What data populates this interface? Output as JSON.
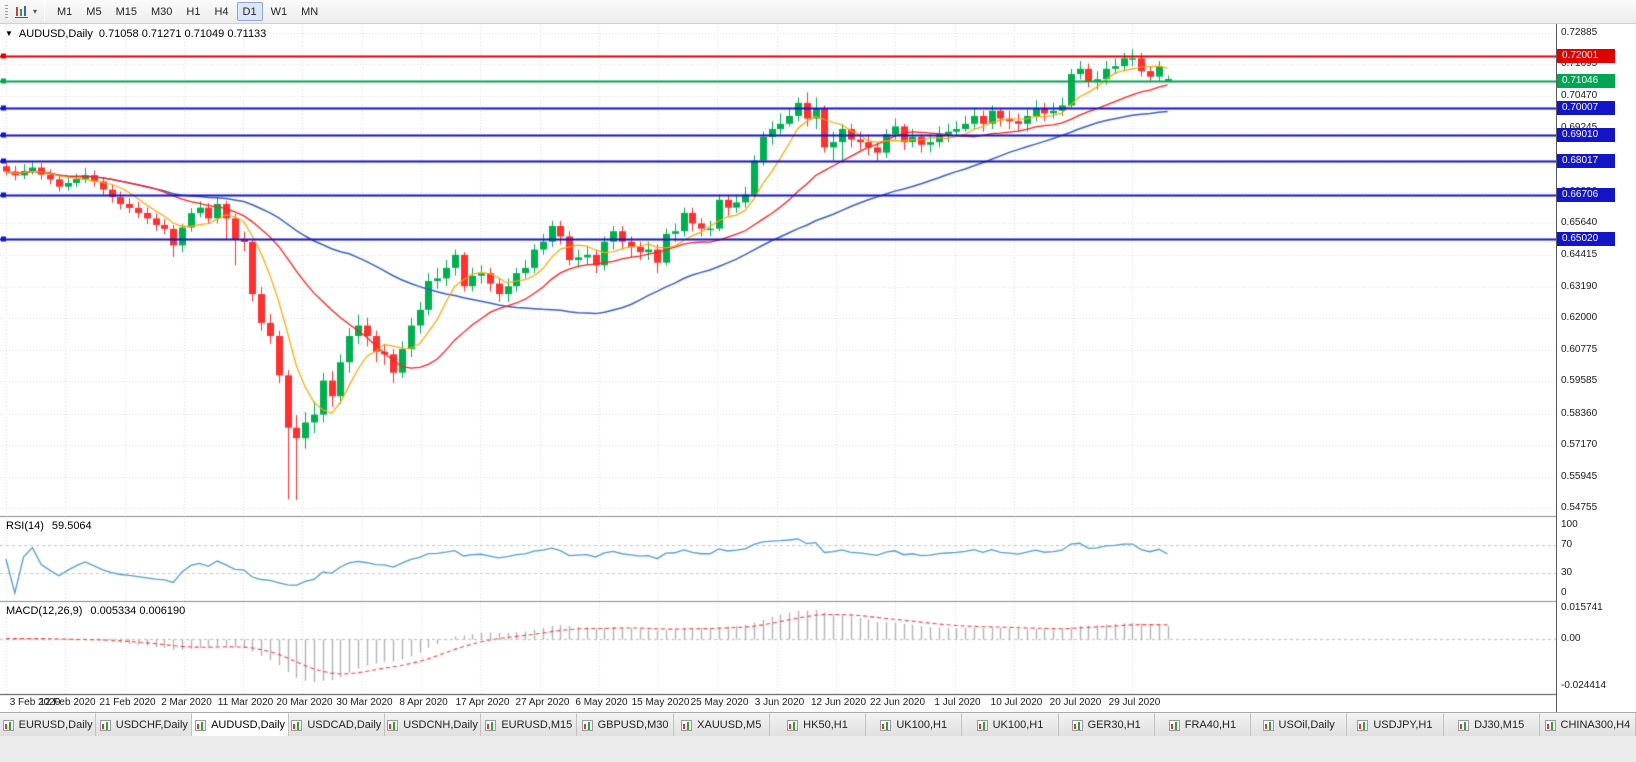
{
  "toolbar": {
    "timeframes": [
      "M1",
      "M5",
      "M15",
      "M30",
      "H1",
      "H4",
      "D1",
      "W1",
      "MN"
    ],
    "active_timeframe": "D1",
    "overflow_caret": "▾"
  },
  "chart": {
    "symbol_period": "AUDUSD,Daily",
    "ohlc": "0.71058 0.71271 0.71049 0.71133",
    "dropdown_glyph": "▼"
  },
  "chart_data": {
    "type": "candlestick",
    "symbol": "AUDUSD",
    "period": "Daily",
    "y_range": [
      0.5445,
      0.7323
    ],
    "y_ticks": [
      "0.72885",
      "0.71695",
      "0.70470",
      "0.69245",
      "0.68055",
      "0.66830",
      "0.65640",
      "0.64415",
      "0.63190",
      "0.62000",
      "0.60775",
      "0.59585",
      "0.58360",
      "0.57170",
      "0.55945",
      "0.54755"
    ],
    "x_labels": [
      "3 Feb 2020",
      "12 Feb 2020",
      "21 Feb 2020",
      "2 Mar 2020",
      "11 Mar 2020",
      "20 Mar 2020",
      "30 Mar 2020",
      "8 Apr 2020",
      "17 Apr 2020",
      "27 Apr 2020",
      "6 May 2020",
      "15 May 2020",
      "25 May 2020",
      "3 Jun 2020",
      "12 Jun 2020",
      "22 Jun 2020",
      "1 Jul 2020",
      "10 Jul 2020",
      "20 Jul 2020",
      "29 Jul 2020"
    ],
    "price_lines": [
      {
        "label": "0.72001",
        "value": 0.72001,
        "color": "#e00000"
      },
      {
        "label": "0.71046",
        "value": 0.71046,
        "color": "#00a651"
      },
      {
        "label": "0.70007",
        "value": 0.70007,
        "color": "#1414c8"
      },
      {
        "label": "0.69010",
        "value": 0.6901,
        "color": "#1414c8"
      },
      {
        "label": "0.68017",
        "value": 0.68017,
        "color": "#1414c8"
      },
      {
        "label": "0.66706",
        "value": 0.66706,
        "color": "#1414c8"
      },
      {
        "label": "0.65020",
        "value": 0.6502,
        "color": "#1414c8"
      }
    ],
    "candles": [
      [
        0.678,
        0.6795,
        0.6745,
        0.676
      ],
      [
        0.676,
        0.6782,
        0.6726,
        0.6745
      ],
      [
        0.6745,
        0.6788,
        0.6731,
        0.6762
      ],
      [
        0.6762,
        0.6799,
        0.6748,
        0.6775
      ],
      [
        0.6775,
        0.6792,
        0.6729,
        0.6748
      ],
      [
        0.6748,
        0.6768,
        0.6711,
        0.673
      ],
      [
        0.673,
        0.6748,
        0.6684,
        0.6702
      ],
      [
        0.6702,
        0.674,
        0.6687,
        0.6716
      ],
      [
        0.6716,
        0.6752,
        0.67,
        0.6731
      ],
      [
        0.6731,
        0.6774,
        0.6716,
        0.6746
      ],
      [
        0.6746,
        0.6764,
        0.6703,
        0.6722
      ],
      [
        0.6722,
        0.6738,
        0.6672,
        0.6691
      ],
      [
        0.6691,
        0.6712,
        0.6641,
        0.6662
      ],
      [
        0.6662,
        0.6684,
        0.6615,
        0.6636
      ],
      [
        0.6636,
        0.6658,
        0.6601,
        0.6621
      ],
      [
        0.6621,
        0.6644,
        0.6582,
        0.6602
      ],
      [
        0.6602,
        0.6623,
        0.6559,
        0.6581
      ],
      [
        0.6581,
        0.66,
        0.6534,
        0.6556
      ],
      [
        0.6556,
        0.6578,
        0.6521,
        0.6541
      ],
      [
        0.6541,
        0.6556,
        0.6434,
        0.6478
      ],
      [
        0.6478,
        0.656,
        0.6452,
        0.6546
      ],
      [
        0.6546,
        0.662,
        0.653,
        0.6601
      ],
      [
        0.6601,
        0.6646,
        0.6585,
        0.6622
      ],
      [
        0.6622,
        0.664,
        0.656,
        0.6581
      ],
      [
        0.6581,
        0.666,
        0.6562,
        0.6636
      ],
      [
        0.6636,
        0.6648,
        0.6498,
        0.6581
      ],
      [
        0.6581,
        0.6598,
        0.6402,
        0.6502
      ],
      [
        0.6502,
        0.653,
        0.6455,
        0.6491
      ],
      [
        0.6491,
        0.6502,
        0.6264,
        0.6292
      ],
      [
        0.6292,
        0.632,
        0.6152,
        0.6182
      ],
      [
        0.6182,
        0.6216,
        0.6102,
        0.6132
      ],
      [
        0.6132,
        0.6152,
        0.5952,
        0.5982
      ],
      [
        0.5982,
        0.6002,
        0.551,
        0.5782
      ],
      [
        0.5782,
        0.583,
        0.5506,
        0.5742
      ],
      [
        0.5742,
        0.5842,
        0.5702,
        0.5802
      ],
      [
        0.5802,
        0.5882,
        0.5762,
        0.5832
      ],
      [
        0.5832,
        0.5992,
        0.5802,
        0.5962
      ],
      [
        0.5962,
        0.5998,
        0.5862,
        0.5902
      ],
      [
        0.5902,
        0.6062,
        0.5872,
        0.6032
      ],
      [
        0.6032,
        0.6162,
        0.5992,
        0.6132
      ],
      [
        0.6132,
        0.6214,
        0.6102,
        0.6172
      ],
      [
        0.6172,
        0.6202,
        0.6092,
        0.6132
      ],
      [
        0.6132,
        0.6152,
        0.6032,
        0.6072
      ],
      [
        0.6072,
        0.6102,
        0.6022,
        0.6062
      ],
      [
        0.6062,
        0.6082,
        0.5952,
        0.5992
      ],
      [
        0.5992,
        0.6112,
        0.5972,
        0.6082
      ],
      [
        0.6082,
        0.6202,
        0.6052,
        0.6172
      ],
      [
        0.6172,
        0.6262,
        0.6142,
        0.6232
      ],
      [
        0.6232,
        0.6372,
        0.6212,
        0.6342
      ],
      [
        0.6342,
        0.6392,
        0.6312,
        0.6352
      ],
      [
        0.6352,
        0.6422,
        0.6322,
        0.6392
      ],
      [
        0.6392,
        0.6462,
        0.6362,
        0.6442
      ],
      [
        0.6442,
        0.6452,
        0.6302,
        0.6322
      ],
      [
        0.6322,
        0.6392,
        0.6302,
        0.6362
      ],
      [
        0.6362,
        0.6402,
        0.6332,
        0.6372
      ],
      [
        0.6372,
        0.6392,
        0.6302,
        0.6332
      ],
      [
        0.6332,
        0.6352,
        0.6262,
        0.6292
      ],
      [
        0.6292,
        0.6352,
        0.6262,
        0.6322
      ],
      [
        0.6322,
        0.6392,
        0.6302,
        0.6372
      ],
      [
        0.6372,
        0.6422,
        0.6352,
        0.6392
      ],
      [
        0.6392,
        0.6482,
        0.6372,
        0.6462
      ],
      [
        0.6462,
        0.6522,
        0.6442,
        0.6492
      ],
      [
        0.6492,
        0.6572,
        0.6472,
        0.6552
      ],
      [
        0.6552,
        0.6572,
        0.6482,
        0.6512
      ],
      [
        0.6512,
        0.6532,
        0.6402,
        0.6422
      ],
      [
        0.6422,
        0.6462,
        0.6392,
        0.6432
      ],
      [
        0.6432,
        0.6472,
        0.6402,
        0.6442
      ],
      [
        0.6442,
        0.6462,
        0.6372,
        0.6402
      ],
      [
        0.6402,
        0.6512,
        0.6382,
        0.6492
      ],
      [
        0.6492,
        0.6552,
        0.6462,
        0.6532
      ],
      [
        0.6532,
        0.6552,
        0.6462,
        0.6492
      ],
      [
        0.6492,
        0.6512,
        0.6432,
        0.6472
      ],
      [
        0.6472,
        0.6492,
        0.6422,
        0.6452
      ],
      [
        0.6452,
        0.6492,
        0.6422,
        0.6462
      ],
      [
        0.6462,
        0.6482,
        0.6372,
        0.6412
      ],
      [
        0.6412,
        0.6542,
        0.6402,
        0.6522
      ],
      [
        0.6522,
        0.6562,
        0.6492,
        0.6532
      ],
      [
        0.6532,
        0.6622,
        0.6512,
        0.6602
      ],
      [
        0.6602,
        0.6622,
        0.6532,
        0.6562
      ],
      [
        0.6562,
        0.6582,
        0.6512,
        0.6542
      ],
      [
        0.6542,
        0.6572,
        0.6512,
        0.6542
      ],
      [
        0.6542,
        0.6672,
        0.6532,
        0.6652
      ],
      [
        0.6652,
        0.6672,
        0.6592,
        0.6622
      ],
      [
        0.6622,
        0.6672,
        0.6602,
        0.6642
      ],
      [
        0.6642,
        0.6702,
        0.6622,
        0.6672
      ],
      [
        0.6672,
        0.6822,
        0.6662,
        0.6802
      ],
      [
        0.6802,
        0.6912,
        0.6782,
        0.6892
      ],
      [
        0.6892,
        0.6952,
        0.6862,
        0.6922
      ],
      [
        0.6922,
        0.6982,
        0.6902,
        0.6942
      ],
      [
        0.6942,
        0.7002,
        0.6932,
        0.6972
      ],
      [
        0.6972,
        0.7042,
        0.6952,
        0.7022
      ],
      [
        0.7022,
        0.7062,
        0.6932,
        0.6962
      ],
      [
        0.6962,
        0.7042,
        0.6922,
        0.7002
      ],
      [
        0.7002,
        0.7012,
        0.6832,
        0.6852
      ],
      [
        0.6852,
        0.6912,
        0.6802,
        0.6872
      ],
      [
        0.6872,
        0.6942,
        0.6792,
        0.6922
      ],
      [
        0.6922,
        0.6942,
        0.6852,
        0.6882
      ],
      [
        0.6882,
        0.6912,
        0.6842,
        0.6872
      ],
      [
        0.6872,
        0.6902,
        0.6822,
        0.6852
      ],
      [
        0.6852,
        0.6872,
        0.6802,
        0.6832
      ],
      [
        0.6832,
        0.6922,
        0.6812,
        0.6902
      ],
      [
        0.6902,
        0.6962,
        0.6882,
        0.6932
      ],
      [
        0.6932,
        0.6942,
        0.6842,
        0.6872
      ],
      [
        0.6872,
        0.6922,
        0.6852,
        0.6892
      ],
      [
        0.6892,
        0.6902,
        0.6832,
        0.6862
      ],
      [
        0.6862,
        0.6902,
        0.6832,
        0.6872
      ],
      [
        0.6872,
        0.6932,
        0.6852,
        0.6902
      ],
      [
        0.6902,
        0.6942,
        0.6872,
        0.6912
      ],
      [
        0.6912,
        0.6952,
        0.6892,
        0.6922
      ],
      [
        0.6922,
        0.6972,
        0.6912,
        0.6942
      ],
      [
        0.6942,
        0.7002,
        0.6922,
        0.6972
      ],
      [
        0.6972,
        0.6992,
        0.6912,
        0.6942
      ],
      [
        0.6942,
        0.7012,
        0.6922,
        0.6992
      ],
      [
        0.6992,
        0.7002,
        0.6932,
        0.6962
      ],
      [
        0.6962,
        0.6992,
        0.6922,
        0.6952
      ],
      [
        0.6952,
        0.6982,
        0.6912,
        0.6942
      ],
      [
        0.6942,
        0.7002,
        0.6912,
        0.6972
      ],
      [
        0.6972,
        0.7032,
        0.6952,
        0.7002
      ],
      [
        0.7002,
        0.7022,
        0.6952,
        0.6982
      ],
      [
        0.6982,
        0.7022,
        0.6962,
        0.6992
      ],
      [
        0.6992,
        0.7042,
        0.6972,
        0.7012
      ],
      [
        0.7012,
        0.7152,
        0.7002,
        0.7132
      ],
      [
        0.7132,
        0.7182,
        0.7112,
        0.7152
      ],
      [
        0.7152,
        0.7172,
        0.7082,
        0.7102
      ],
      [
        0.7102,
        0.7142,
        0.7072,
        0.7112
      ],
      [
        0.7112,
        0.7182,
        0.7092,
        0.7152
      ],
      [
        0.7152,
        0.7192,
        0.7132,
        0.7162
      ],
      [
        0.7162,
        0.7212,
        0.7142,
        0.7192
      ],
      [
        0.7192,
        0.7227,
        0.7162,
        0.7192
      ],
      [
        0.7192,
        0.7212,
        0.7123,
        0.7143
      ],
      [
        0.7143,
        0.7163,
        0.7102,
        0.7122
      ],
      [
        0.7122,
        0.7182,
        0.7102,
        0.7162
      ],
      [
        0.7106,
        0.7127,
        0.7105,
        0.7113
      ]
    ],
    "indicators": {
      "rsi": {
        "label": "RSI(14)",
        "value": "59.5064",
        "period": 14,
        "ticks": [
          "100",
          "70",
          "30",
          "0"
        ],
        "levels": [
          70,
          30
        ]
      },
      "macd": {
        "label": "MACD(12,26,9)",
        "value": "0.005334 0.006190",
        "fast": 12,
        "slow": 26,
        "signal": 9,
        "range": [
          -0.024414,
          0.015741
        ],
        "ticks": [
          {
            "label": "0.015741",
            "value": 0.015741
          },
          {
            "label": "0.00",
            "value": 0
          },
          {
            "label": "-0.024414",
            "value": -0.024414
          }
        ]
      }
    },
    "colors": {
      "bull": "#00b050",
      "bear": "#ff3030",
      "grid": "#dedede",
      "ma_fast": "#ffa500",
      "ma_medium": "#ff2020",
      "ma_slow": "#3a5fc8",
      "rsi": "#4f9ed9",
      "rsi_level": "#c8c8c8",
      "macd_hist": "#b4b4b4",
      "macd_signal": "#ff4040"
    }
  },
  "tabs": {
    "active_index": 2,
    "items": [
      "EURUSD,Daily",
      "USDCHF,Daily",
      "AUDUSD,Daily",
      "USDCAD,Daily",
      "USDCNH,Daily",
      "EURUSD,M15",
      "GBPUSD,M30",
      "XAUUSD,M5",
      "HK50,H1",
      "UK100,H1",
      "UK100,H1",
      "GER30,H1",
      "FRA40,H1",
      "USOil,Daily",
      "USDJPY,H1",
      "DJ30,M15",
      "CHINA300,H4"
    ]
  }
}
